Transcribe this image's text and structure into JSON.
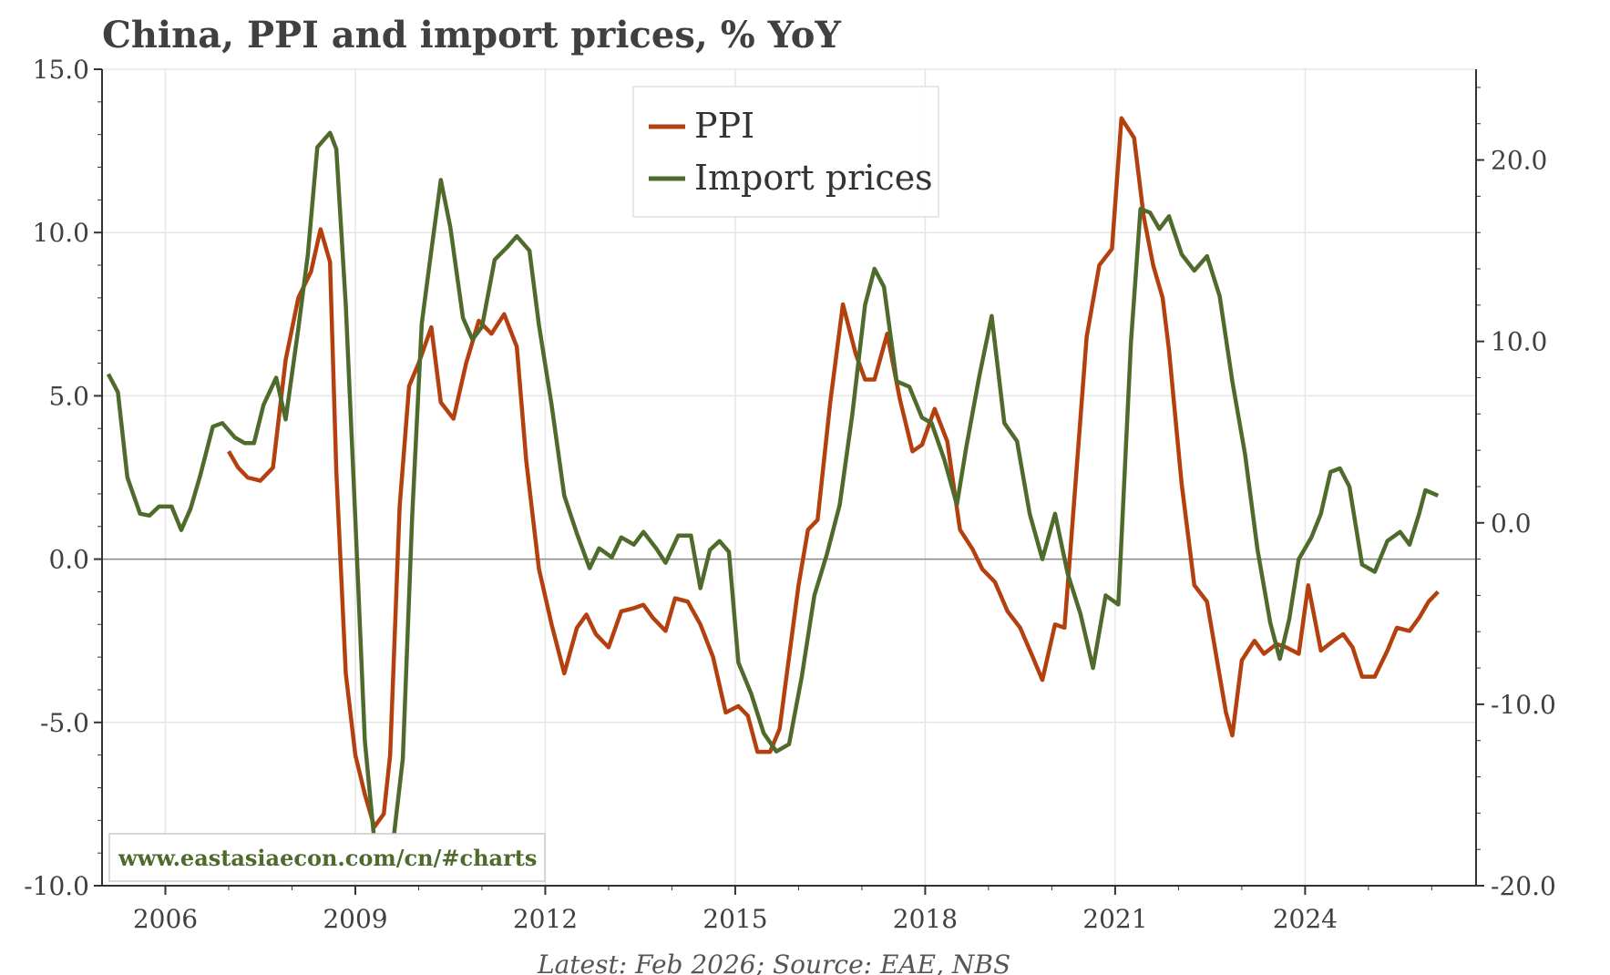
{
  "chart_data": {
    "type": "line",
    "title": "China, PPI and import prices, % YoY",
    "source_note": "Latest: Feb 2026; Source: EAE, NBS",
    "watermark": "www.eastasiaecon.com/cn/#charts",
    "left_axis": {
      "range": [
        -10,
        15
      ],
      "ticks": [
        -10,
        -5,
        0,
        5,
        10,
        15
      ],
      "tick_labels": [
        "-10.0",
        "-5.0",
        "0.0",
        "5.0",
        "10.0",
        "15.0"
      ]
    },
    "right_axis": {
      "range": [
        -20,
        25
      ],
      "ticks": [
        -20,
        -10,
        0,
        10,
        20
      ],
      "tick_labels": [
        "-20.0",
        "-10.0",
        "0.0",
        "10.0",
        "20.0"
      ]
    },
    "x_axis": {
      "range": [
        2005.0,
        2026.7
      ],
      "ticks": [
        2006,
        2009,
        2012,
        2015,
        2018,
        2021,
        2024
      ],
      "tick_labels": [
        "2006",
        "2009",
        "2012",
        "2015",
        "2018",
        "2021",
        "2024"
      ]
    },
    "grid": true,
    "legend_position": "top-center",
    "series": [
      {
        "name": "PPI",
        "axis": "left",
        "color": "#b5400f",
        "x": [
          2007.0,
          2007.15,
          2007.3,
          2007.5,
          2007.7,
          2007.9,
          2008.1,
          2008.3,
          2008.45,
          2008.6,
          2008.7,
          2008.85,
          2009.0,
          2009.15,
          2009.3,
          2009.45,
          2009.55,
          2009.7,
          2009.85,
          2010.0,
          2010.2,
          2010.35,
          2010.55,
          2010.75,
          2010.95,
          2011.15,
          2011.35,
          2011.55,
          2011.7,
          2011.9,
          2012.1,
          2012.3,
          2012.5,
          2012.65,
          2012.8,
          2013.0,
          2013.2,
          2013.4,
          2013.55,
          2013.7,
          2013.9,
          2014.05,
          2014.25,
          2014.45,
          2014.65,
          2014.85,
          2015.05,
          2015.2,
          2015.35,
          2015.55,
          2015.7,
          2015.85,
          2016.0,
          2016.15,
          2016.3,
          2016.5,
          2016.7,
          2016.9,
          2017.05,
          2017.2,
          2017.4,
          2017.6,
          2017.8,
          2017.95,
          2018.15,
          2018.35,
          2018.55,
          2018.75,
          2018.9,
          2019.1,
          2019.3,
          2019.5,
          2019.7,
          2019.85,
          2020.05,
          2020.2,
          2020.35,
          2020.55,
          2020.75,
          2020.95,
          2021.1,
          2021.3,
          2021.45,
          2021.6,
          2021.75,
          2021.85,
          2022.05,
          2022.25,
          2022.45,
          2022.6,
          2022.75,
          2022.85,
          2023.0,
          2023.2,
          2023.35,
          2023.55,
          2023.7,
          2023.9,
          2024.05,
          2024.25,
          2024.45,
          2024.6,
          2024.75,
          2024.9,
          2025.1,
          2025.3,
          2025.45,
          2025.65,
          2025.8,
          2025.95,
          2026.1
        ],
        "values": [
          3.3,
          2.8,
          2.5,
          2.4,
          2.8,
          6.1,
          8.0,
          8.8,
          10.1,
          9.1,
          2.7,
          -3.5,
          -6.0,
          -7.2,
          -8.2,
          -7.8,
          -6.0,
          1.6,
          5.3,
          6.0,
          7.1,
          4.8,
          4.3,
          6.0,
          7.3,
          6.9,
          7.5,
          6.5,
          3.0,
          -0.3,
          -2.0,
          -3.5,
          -2.1,
          -1.7,
          -2.3,
          -2.7,
          -1.6,
          -1.5,
          -1.4,
          -1.8,
          -2.2,
          -1.2,
          -1.3,
          -2.0,
          -3.0,
          -4.7,
          -4.5,
          -4.8,
          -5.9,
          -5.9,
          -5.2,
          -3.0,
          -0.8,
          0.9,
          1.2,
          4.8,
          7.8,
          6.3,
          5.5,
          5.5,
          6.9,
          4.9,
          3.3,
          3.5,
          4.6,
          3.6,
          0.9,
          0.3,
          -0.3,
          -0.7,
          -1.6,
          -2.1,
          -3.0,
          -3.7,
          -2.0,
          -2.1,
          1.7,
          6.8,
          9.0,
          9.5,
          13.5,
          12.9,
          10.5,
          9.0,
          8.0,
          6.4,
          2.3,
          -0.8,
          -1.3,
          -3.0,
          -4.7,
          -5.4,
          -3.1,
          -2.5,
          -2.9,
          -2.6,
          -2.7,
          -2.9,
          -0.8,
          -2.8,
          -2.5,
          -2.3,
          -2.7,
          -3.6,
          -3.6,
          -2.8,
          -2.1,
          -2.2,
          -1.8,
          -1.3,
          -1.0
        ]
      },
      {
        "name": "Import prices",
        "axis": "right",
        "color": "#4e6b2c",
        "x": [
          2005.1,
          2005.25,
          2005.4,
          2005.6,
          2005.75,
          2005.9,
          2006.1,
          2006.25,
          2006.4,
          2006.55,
          2006.75,
          2006.9,
          2007.1,
          2007.25,
          2007.4,
          2007.55,
          2007.75,
          2007.9,
          2008.1,
          2008.25,
          2008.4,
          2008.5,
          2008.6,
          2008.7,
          2008.85,
          2009.0,
          2009.15,
          2009.3,
          2009.45,
          2009.6,
          2009.75,
          2009.9,
          2010.05,
          2010.2,
          2010.35,
          2010.5,
          2010.7,
          2010.85,
          2011.0,
          2011.2,
          2011.4,
          2011.55,
          2011.75,
          2011.9,
          2012.1,
          2012.3,
          2012.5,
          2012.7,
          2012.85,
          2013.05,
          2013.2,
          2013.4,
          2013.55,
          2013.75,
          2013.9,
          2014.1,
          2014.3,
          2014.45,
          2014.6,
          2014.75,
          2014.9,
          2015.05,
          2015.25,
          2015.45,
          2015.65,
          2015.85,
          2016.05,
          2016.25,
          2016.45,
          2016.65,
          2016.85,
          2017.05,
          2017.2,
          2017.35,
          2017.55,
          2017.75,
          2017.95,
          2018.1,
          2018.3,
          2018.5,
          2018.65,
          2018.85,
          2019.05,
          2019.25,
          2019.45,
          2019.65,
          2019.85,
          2020.05,
          2020.25,
          2020.45,
          2020.65,
          2020.85,
          2021.05,
          2021.25,
          2021.4,
          2021.55,
          2021.7,
          2021.85,
          2022.05,
          2022.25,
          2022.45,
          2022.65,
          2022.85,
          2023.05,
          2023.25,
          2023.45,
          2023.6,
          2023.75,
          2023.9,
          2024.1,
          2024.25,
          2024.4,
          2024.55,
          2024.7,
          2024.9,
          2025.1,
          2025.3,
          2025.5,
          2025.65,
          2025.8,
          2025.9,
          2026.1
        ],
        "values": [
          8.2,
          7.2,
          2.5,
          0.5,
          0.4,
          0.9,
          0.9,
          -0.4,
          0.8,
          2.6,
          5.3,
          5.5,
          4.7,
          4.4,
          4.4,
          6.5,
          8.0,
          5.7,
          10.7,
          14.8,
          20.7,
          21.1,
          21.5,
          20.6,
          12.0,
          0.2,
          -12.0,
          -17.5,
          -19.4,
          -17.5,
          -13.0,
          0.5,
          11.0,
          15.0,
          18.9,
          16.3,
          11.3,
          10.1,
          10.8,
          14.5,
          15.2,
          15.8,
          15.0,
          10.9,
          6.5,
          1.5,
          -0.6,
          -2.5,
          -1.4,
          -1.9,
          -0.8,
          -1.2,
          -0.5,
          -1.4,
          -2.2,
          -0.7,
          -0.7,
          -3.6,
          -1.5,
          -1.0,
          -1.6,
          -7.7,
          -9.4,
          -11.6,
          -12.6,
          -12.2,
          -8.5,
          -4.0,
          -1.7,
          1.0,
          6.0,
          12.0,
          14.0,
          13.0,
          7.8,
          7.5,
          5.8,
          5.5,
          3.5,
          1.0,
          4.2,
          8.0,
          11.4,
          5.5,
          4.5,
          0.5,
          -2.0,
          0.5,
          -2.8,
          -5.0,
          -8.0,
          -4.0,
          -4.5,
          10.0,
          17.3,
          17.1,
          16.2,
          16.9,
          14.8,
          13.9,
          14.7,
          12.5,
          7.8,
          3.8,
          -1.5,
          -5.5,
          -7.5,
          -5.3,
          -2.0,
          -0.8,
          0.5,
          2.8,
          3.0,
          2.0,
          -2.3,
          -2.7,
          -1.0,
          -0.5,
          -1.2,
          0.5,
          1.8,
          1.5
        ]
      }
    ]
  }
}
